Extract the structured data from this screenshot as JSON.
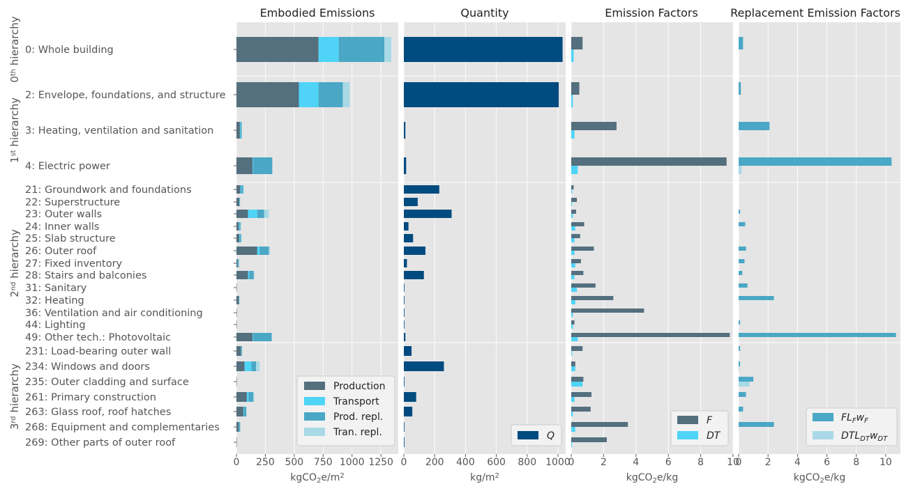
{
  "colors": {
    "production": "#546f7e",
    "transport": "#4fd4f7",
    "prod_repl": "#4aa7c5",
    "tran_repl": "#a9d9e6",
    "quantity": "#004b7f",
    "panel_bg": "#e5e5e5",
    "grid": "#ffffff"
  },
  "hierarchy_labels": [
    {
      "key": "h0",
      "base": "0",
      "sup": "th",
      "rest": " hierarchy"
    },
    {
      "key": "h1",
      "base": "1",
      "sup": "st",
      "rest": " hierarchy"
    },
    {
      "key": "h2",
      "base": "2",
      "sup": "nd",
      "rest": " hierarchy"
    },
    {
      "key": "h3",
      "base": "3",
      "sup": "rd",
      "rest": " hierarchy"
    }
  ],
  "chart_data": [
    {
      "type": "bar",
      "orientation": "horizontal",
      "stacked": true,
      "title": "Embodied Emissions",
      "xlabel": "kgCO₂e/m²",
      "xlim": [
        0,
        1400
      ],
      "xticks": [
        "0",
        "250",
        "500",
        "750",
        "1000",
        "1250"
      ],
      "categories": [
        "0: Whole building",
        "2: Envelope, foundations, and structure",
        "3: Heating, ventilation and sanitation",
        "4: Electric power",
        "21: Groundwork and foundations",
        "22: Superstructure",
        "23: Outer walls",
        "24: Inner walls",
        "25: Slab structure",
        "26: Outer roof",
        "27: Fixed inventory",
        "28: Stairs and balconies",
        "31: Sanitary",
        "32: Heating",
        "36: Ventilation and air conditioning",
        "44: Lighting",
        "49: Other tech.: Photovoltaic",
        "231: Load-bearing outer wall",
        "234: Windows and doors",
        "235: Outer cladding and surface",
        "261: Primary construction",
        "263: Glass roof, roof hatches",
        "268: Equipment and complementaries",
        "269: Other parts of outer roof"
      ],
      "series": [
        {
          "name": "Production",
          "values": [
            710,
            540,
            30,
            140,
            35,
            25,
            100,
            20,
            25,
            180,
            10,
            100,
            2,
            20,
            2,
            1,
            140,
            40,
            70,
            1,
            90,
            60,
            20,
            1
          ]
        },
        {
          "name": "Transport",
          "values": [
            175,
            170,
            5,
            5,
            8,
            3,
            80,
            5,
            5,
            20,
            3,
            10,
            0,
            0,
            0,
            0,
            5,
            3,
            60,
            0,
            15,
            5,
            2,
            0
          ]
        },
        {
          "name": "Prod. repl.",
          "values": [
            395,
            210,
            10,
            165,
            15,
            2,
            60,
            10,
            10,
            80,
            8,
            40,
            0,
            5,
            0,
            0,
            160,
            5,
            40,
            0,
            40,
            20,
            10,
            0
          ]
        },
        {
          "name": "Tran. repl.",
          "values": [
            60,
            60,
            0,
            0,
            5,
            0,
            40,
            5,
            5,
            10,
            0,
            5,
            0,
            0,
            0,
            0,
            0,
            0,
            30,
            0,
            10,
            2,
            0,
            0
          ]
        }
      ],
      "legend": {
        "placement": "bottom-right",
        "entries": [
          "Production",
          "Transport",
          "Prod. repl.",
          "Tran. repl."
        ]
      }
    },
    {
      "type": "bar",
      "orientation": "horizontal",
      "title": "Quantity",
      "xlabel": "kg/m²",
      "xlim": [
        0,
        1050
      ],
      "xticks": [
        "0",
        "200",
        "400",
        "600",
        "800",
        "1000"
      ],
      "series": [
        {
          "name": "Q",
          "values": [
            1030,
            1005,
            10,
            15,
            230,
            90,
            310,
            30,
            60,
            140,
            20,
            130,
            1,
            1,
            1,
            1,
            10,
            50,
            260,
            1,
            80,
            55,
            1,
            1
          ]
        }
      ],
      "legend": {
        "placement": "bottom-right",
        "entries": [
          "Q"
        ]
      }
    },
    {
      "type": "bar",
      "orientation": "horizontal",
      "title": "Emission Factors",
      "xlabel": "kgCO₂e/kg",
      "xlim": [
        0,
        10
      ],
      "xticks": [
        "0",
        "2",
        "4",
        "6",
        "8",
        "10"
      ],
      "series": [
        {
          "name": "F",
          "values": [
            0.7,
            0.5,
            2.8,
            9.6,
            0.15,
            0.35,
            0.3,
            0.8,
            0.55,
            1.4,
            0.6,
            0.75,
            1.5,
            2.6,
            4.5,
            0.2,
            9.8,
            0.7,
            0.25,
            0.75,
            1.25,
            1.2,
            3.5,
            2.2
          ]
        },
        {
          "name": "DT",
          "values": [
            0.15,
            0.1,
            0.2,
            0.4,
            0.05,
            0.05,
            0.1,
            0.25,
            0.2,
            0.2,
            0.25,
            0.2,
            0.35,
            0.25,
            0.1,
            0.1,
            0.4,
            0.05,
            0.25,
            0.7,
            0.2,
            0.1,
            0.25,
            0.05
          ]
        }
      ],
      "legend": {
        "placement": "bottom-right",
        "entries": [
          "F",
          "DT"
        ]
      }
    },
    {
      "type": "bar",
      "orientation": "horizontal",
      "title": "Replacement Emission Factors",
      "xlabel": "kgCO₂e/kg",
      "xlim": [
        0,
        11
      ],
      "xticks": [
        "0",
        "2",
        "4",
        "6",
        "8",
        "10"
      ],
      "series": [
        {
          "name": "FL_F w_F",
          "values": [
            0.3,
            0.15,
            2.1,
            10.4,
            0,
            0,
            0.1,
            0.45,
            0,
            0.5,
            0.4,
            0.25,
            0.6,
            2.4,
            0,
            0.1,
            10.7,
            0.1,
            0.1,
            1.0,
            0.5,
            0.3,
            2.4,
            0
          ]
        },
        {
          "name": "DTL_DT w_DT",
          "values": [
            0,
            0,
            0,
            0.2,
            0,
            0,
            0,
            0,
            0,
            0,
            0,
            0,
            0,
            0,
            0,
            0,
            0,
            0,
            0.05,
            0.75,
            0,
            0,
            0,
            0
          ]
        }
      ],
      "legend": {
        "placement": "bottom-right",
        "entries": [
          "FL_F w_F",
          "DTL_DT w_DT"
        ]
      }
    }
  ]
}
